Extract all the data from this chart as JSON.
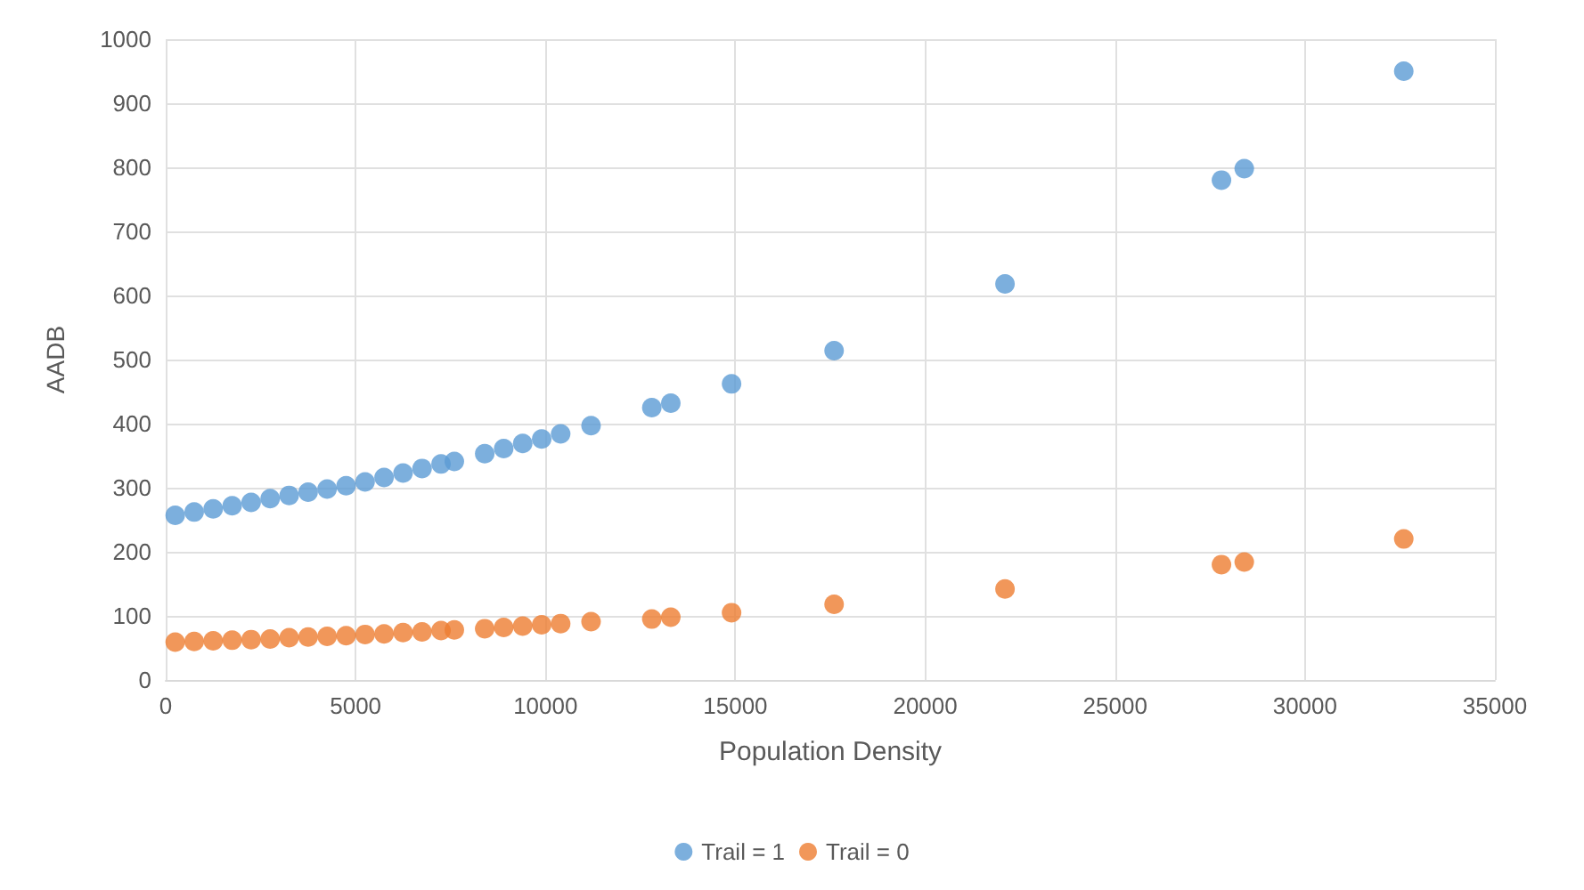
{
  "chart_data": {
    "type": "scatter",
    "xlabel": "Population Density",
    "ylabel": "AADB",
    "x": [
      250,
      750,
      1250,
      1750,
      2250,
      2750,
      3250,
      3750,
      4250,
      4750,
      5250,
      5750,
      6250,
      6750,
      7250,
      7600,
      8400,
      8900,
      9400,
      9900,
      10400,
      11200,
      12800,
      13300,
      14900,
      17600,
      22100,
      27800,
      28400,
      32600
    ],
    "series": [
      {
        "name": "Trail = 1",
        "color": "#5b9bd5",
        "values": [
          257,
          262,
          267,
          272,
          277,
          283,
          288,
          293,
          298,
          303,
          309,
          316,
          323,
          330,
          337,
          341,
          353,
          361,
          369,
          376,
          384,
          397,
          425,
          432,
          462,
          514,
          618,
          780,
          798,
          950
        ]
      },
      {
        "name": "Trail = 0",
        "color": "#ed7d31",
        "values": [
          59,
          60,
          61,
          62,
          63,
          64,
          66,
          67,
          68,
          69,
          71,
          72,
          74,
          75,
          77,
          78,
          80,
          82,
          84,
          86,
          88,
          91,
          95,
          98,
          105,
          118,
          142,
          180,
          184,
          220
        ]
      }
    ],
    "xlim": [
      0,
      35000
    ],
    "xticks": [
      0,
      5000,
      10000,
      15000,
      20000,
      25000,
      30000,
      35000
    ],
    "ylim": [
      0,
      1000
    ],
    "yticks": [
      0,
      100,
      200,
      300,
      400,
      500,
      600,
      700,
      800,
      900,
      1000
    ],
    "grid": true,
    "legend": "bottom",
    "marker": "circle"
  }
}
